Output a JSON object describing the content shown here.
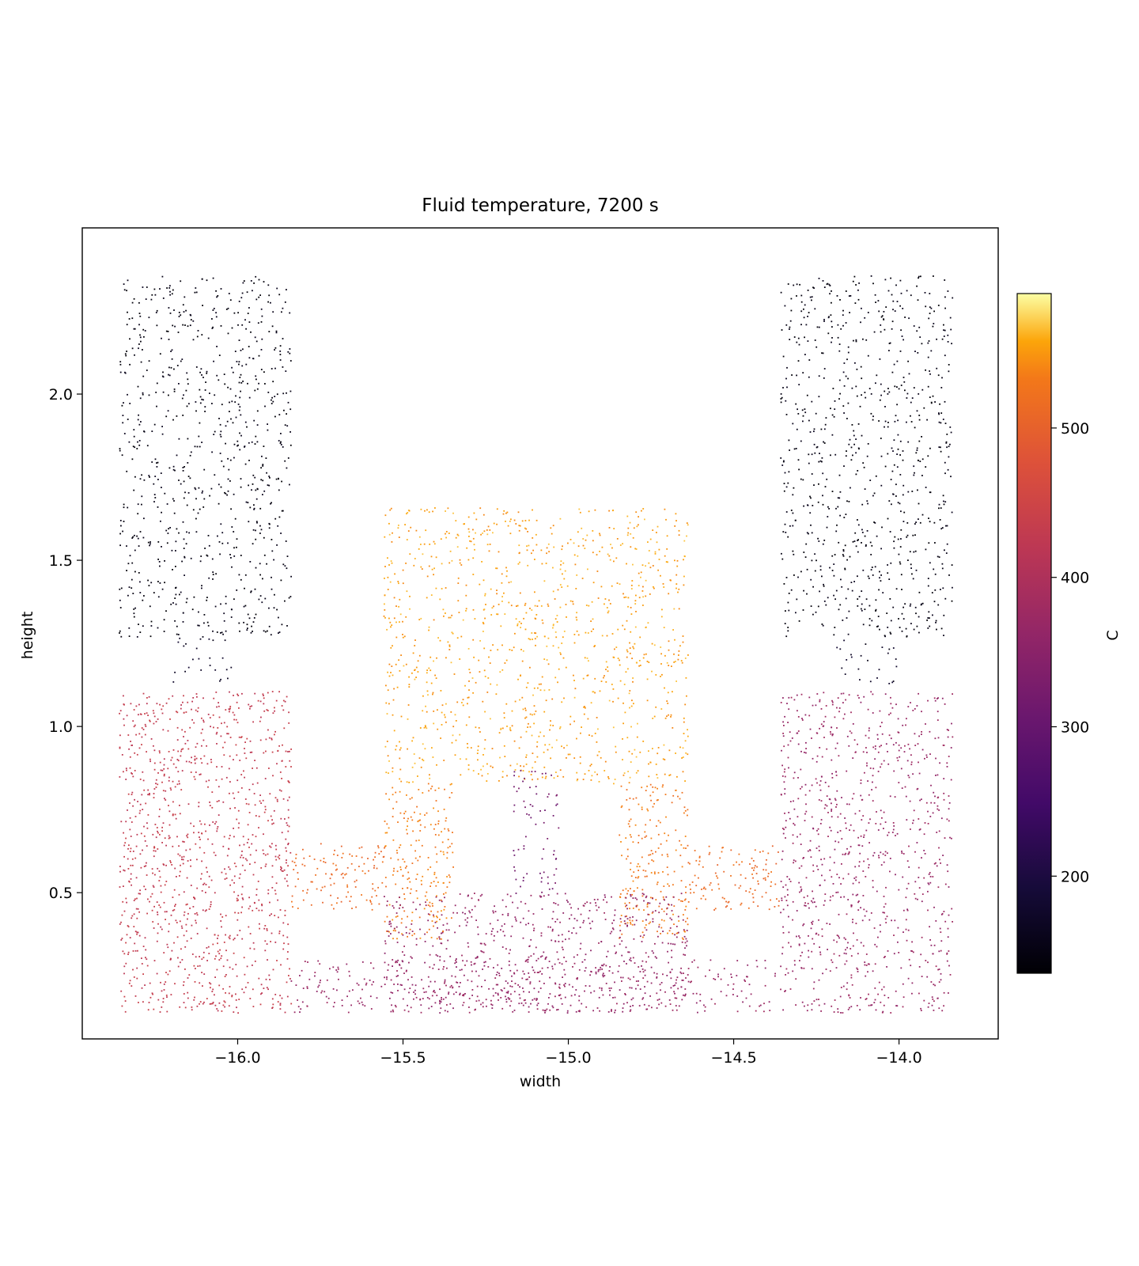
{
  "chart_data": {
    "type": "scatter",
    "title": "Fluid temperature, 7200 s",
    "xlabel": "width",
    "ylabel": "height",
    "xlim": [
      -16.47,
      -13.7
    ],
    "ylim": [
      0.06,
      2.5
    ],
    "xticks": [
      -16.0,
      -15.5,
      -15.0,
      -14.5,
      -14.0
    ],
    "xtick_labels": [
      "−16.0",
      "−15.5",
      "−15.0",
      "−14.5",
      "−14.0"
    ],
    "yticks": [
      0.5,
      1.0,
      1.5,
      2.0
    ],
    "ytick_labels": [
      "0.5",
      "1.0",
      "1.5",
      "2.0"
    ],
    "grid": false,
    "colormap": "inferno",
    "colorbar": {
      "label": "C",
      "range": [
        135,
        590
      ],
      "ticks": [
        200,
        300,
        400,
        500
      ],
      "tick_labels": [
        "200",
        "300",
        "400",
        "500"
      ]
    },
    "regions": [
      {
        "name": "left-upper-tank",
        "x": [
          -16.36,
          -15.84
        ],
        "y": [
          1.27,
          2.36
        ],
        "temperature": 150,
        "n": 800
      },
      {
        "name": "right-upper-tank",
        "x": [
          -14.36,
          -13.84
        ],
        "y": [
          1.27,
          2.36
        ],
        "temperature": 150,
        "n": 800
      },
      {
        "name": "left-connector",
        "x": [
          -16.2,
          -16.0
        ],
        "y": [
          1.13,
          1.27
        ],
        "temperature": 170,
        "n": 25
      },
      {
        "name": "right-connector",
        "x": [
          -14.2,
          -14.0
        ],
        "y": [
          1.13,
          1.27
        ],
        "temperature": 170,
        "n": 25
      },
      {
        "name": "left-lower-tank",
        "x": [
          -16.36,
          -15.84
        ],
        "y": [
          0.14,
          1.11
        ],
        "temperature": 430,
        "n": 1100
      },
      {
        "name": "right-lower-tank",
        "x": [
          -14.36,
          -13.84
        ],
        "y": [
          0.14,
          1.11
        ],
        "temperature": 370,
        "n": 900
      },
      {
        "name": "left-pipe",
        "x": [
          -15.84,
          -15.55
        ],
        "y": [
          0.45,
          0.65
        ],
        "temperature": 515,
        "n": 120
      },
      {
        "name": "right-pipe",
        "x": [
          -14.65,
          -14.36
        ],
        "y": [
          0.45,
          0.65
        ],
        "temperature": 515,
        "n": 120
      },
      {
        "name": "center-upper",
        "x": [
          -15.56,
          -14.64
        ],
        "y": [
          0.83,
          1.66
        ],
        "temperature": 555,
        "n": 1100
      },
      {
        "name": "center-left-leg",
        "x": [
          -15.56,
          -15.35
        ],
        "y": [
          0.36,
          0.83
        ],
        "temperature": 535,
        "n": 220
      },
      {
        "name": "center-right-leg",
        "x": [
          -14.85,
          -14.64
        ],
        "y": [
          0.36,
          0.83
        ],
        "temperature": 530,
        "n": 220
      },
      {
        "name": "center-tube",
        "x": [
          -15.17,
          -15.03
        ],
        "y": [
          0.5,
          0.88
        ],
        "temperature": 320,
        "n": 70
      },
      {
        "name": "bottom-channel",
        "x": [
          -15.84,
          -14.36
        ],
        "y": [
          0.14,
          0.3
        ],
        "temperature": 370,
        "n": 380
      },
      {
        "name": "center-bottom",
        "x": [
          -15.56,
          -14.64
        ],
        "y": [
          0.14,
          0.5
        ],
        "temperature": 365,
        "n": 650
      }
    ]
  }
}
